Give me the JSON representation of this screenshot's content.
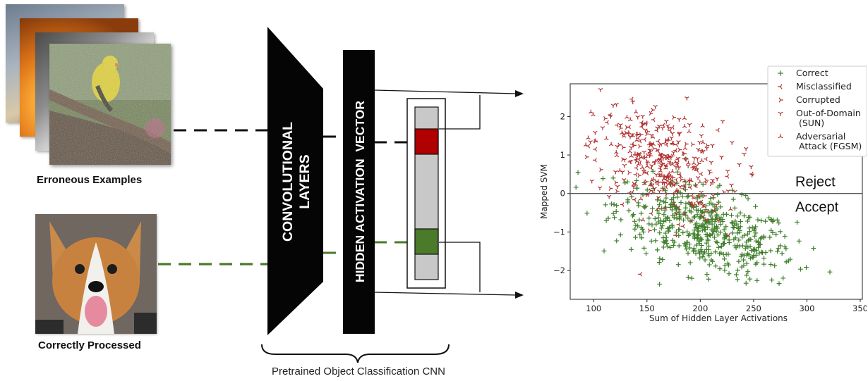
{
  "captions": {
    "erroneous": "Erroneous Examples",
    "correct": "Correctly Processed",
    "cnn": "Pretrained Object Classification CNN"
  },
  "blocks": {
    "conv_line1": "CONVOLUTIONAL",
    "conv_line2": "LAYERS",
    "hidden": "HIDDEN ACTIVATION  VECTOR"
  },
  "colors": {
    "error_red": "#b00000",
    "correct_green": "#4a7a2a",
    "vector_gray": "#c8c8c8",
    "red_series": "#b03030",
    "green_series": "#3f7f2a"
  },
  "chart_data": {
    "type": "scatter",
    "xlabel": "Sum of Hidden Layer Activations",
    "ylabel": "Mapped SVM",
    "xlim": [
      78,
      352
    ],
    "ylim": [
      -2.75,
      2.85
    ],
    "xticks": [
      100,
      150,
      200,
      250,
      300,
      350
    ],
    "yticks": [
      -2,
      -1,
      0,
      1,
      2
    ],
    "threshold_y": 0,
    "region_labels": {
      "above": "Reject",
      "below": "Accept"
    },
    "legend_position": "top-right",
    "series": [
      {
        "name": "Correct",
        "marker": "+",
        "color": "#3f7f2a",
        "center": [
          205,
          -0.95
        ],
        "spread": [
          42,
          0.62
        ],
        "corr": -0.55,
        "approx_count": 520
      },
      {
        "name": "Misclassified",
        "marker": "tri_left",
        "color": "#b03030",
        "center": [
          160,
          0.65
        ],
        "spread": [
          28,
          0.75
        ],
        "corr": -0.3,
        "approx_count": 90
      },
      {
        "name": "Corrupted",
        "marker": "tri_right",
        "color": "#b03030",
        "center": [
          158,
          0.9
        ],
        "spread": [
          30,
          0.7
        ],
        "corr": -0.3,
        "approx_count": 90
      },
      {
        "name": "Out-of-Domain\n(SUN)",
        "marker": "tri_down",
        "color": "#b03030",
        "center": [
          165,
          0.95
        ],
        "spread": [
          35,
          0.75
        ],
        "corr": -0.3,
        "approx_count": 120
      },
      {
        "name": "Adversarial\nAttack  (FGSM)",
        "marker": "tri_up",
        "color": "#b03030",
        "center": [
          160,
          0.7
        ],
        "spread": [
          30,
          0.7
        ],
        "corr": -0.3,
        "approx_count": 80
      }
    ]
  }
}
